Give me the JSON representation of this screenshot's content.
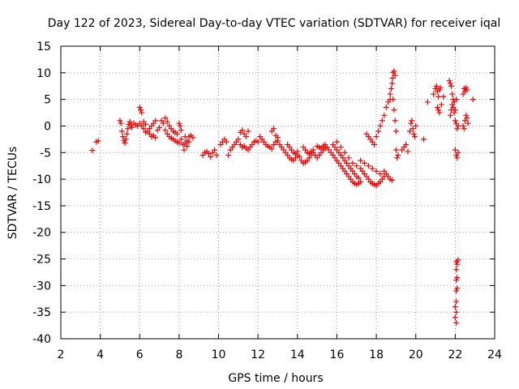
{
  "chart_data": {
    "type": "scatter",
    "title": "Day 122 of 2023, Sidereal Day-to-day VTEC variation (SDTVAR) for receiver iqal",
    "xlabel": "GPS time / hours",
    "ylabel": "SDTVAR / TECUs",
    "xlim": [
      2,
      24
    ],
    "ylim": [
      -40,
      15
    ],
    "xticks": [
      2,
      4,
      6,
      8,
      10,
      12,
      14,
      16,
      18,
      20,
      22,
      24
    ],
    "yticks": [
      15,
      10,
      5,
      0,
      -5,
      -10,
      -15,
      -20,
      -25,
      -30,
      -35,
      -40
    ],
    "grid": true,
    "marker": "plus",
    "color": "#ff0000",
    "series": [
      {
        "name": "SDTVAR",
        "points": [
          [
            3.6,
            -4.6
          ],
          [
            3.8,
            -3.0
          ],
          [
            3.9,
            -2.8
          ],
          [
            5.0,
            1.0
          ],
          [
            5.05,
            0.5
          ],
          [
            5.1,
            -1.0
          ],
          [
            5.15,
            -2.0
          ],
          [
            5.2,
            -2.8
          ],
          [
            5.25,
            -3.2
          ],
          [
            5.3,
            -2.5
          ],
          [
            5.35,
            -1.5
          ],
          [
            5.4,
            -0.5
          ],
          [
            5.45,
            0.3
          ],
          [
            5.5,
            0.8
          ],
          [
            5.55,
            0.2
          ],
          [
            5.6,
            -0.3
          ],
          [
            5.7,
            0.5
          ],
          [
            5.8,
            0.2
          ],
          [
            5.9,
            0.0
          ],
          [
            6.0,
            3.5
          ],
          [
            6.05,
            3.0
          ],
          [
            6.1,
            2.5
          ],
          [
            6.0,
            0.5
          ],
          [
            6.1,
            0.0
          ],
          [
            6.2,
            -0.5
          ],
          [
            6.3,
            -1.2
          ],
          [
            6.4,
            -1.0
          ],
          [
            6.2,
            0.8
          ],
          [
            6.3,
            0.3
          ],
          [
            6.5,
            -0.5
          ],
          [
            6.6,
            0.0
          ],
          [
            6.7,
            0.5
          ],
          [
            6.8,
            1.0
          ],
          [
            6.9,
            -0.8
          ],
          [
            7.0,
            -0.3
          ],
          [
            6.5,
            -1.5
          ],
          [
            6.6,
            -2.0
          ],
          [
            6.7,
            -1.8
          ],
          [
            6.8,
            -2.2
          ],
          [
            7.1,
            1.0
          ],
          [
            7.2,
            0.5
          ],
          [
            7.3,
            1.5
          ],
          [
            7.4,
            0.8
          ],
          [
            7.3,
            -0.8
          ],
          [
            7.4,
            -1.5
          ],
          [
            7.5,
            -2.0
          ],
          [
            7.6,
            -2.3
          ],
          [
            7.7,
            -2.5
          ],
          [
            7.8,
            -2.8
          ],
          [
            7.9,
            -3.0
          ],
          [
            8.0,
            -3.2
          ],
          [
            7.5,
            0.0
          ],
          [
            7.6,
            -0.5
          ],
          [
            7.7,
            -1.0
          ],
          [
            7.8,
            -1.2
          ],
          [
            7.9,
            -1.5
          ],
          [
            8.0,
            0.5
          ],
          [
            8.05,
            0.0
          ],
          [
            8.1,
            -0.8
          ],
          [
            8.1,
            -2.5
          ],
          [
            8.2,
            -3.5
          ],
          [
            8.25,
            -4.5
          ],
          [
            8.3,
            -3.2
          ],
          [
            8.4,
            -2.8
          ],
          [
            8.5,
            -2.0
          ],
          [
            8.6,
            -1.8
          ],
          [
            8.7,
            -2.2
          ],
          [
            8.3,
            -2.0
          ],
          [
            8.4,
            -3.8
          ],
          [
            8.5,
            -3.0
          ],
          [
            9.2,
            -5.5
          ],
          [
            9.3,
            -5.0
          ],
          [
            9.4,
            -4.8
          ],
          [
            9.5,
            -5.2
          ],
          [
            9.6,
            -5.8
          ],
          [
            9.7,
            -5.0
          ],
          [
            9.8,
            -4.5
          ],
          [
            9.9,
            -5.5
          ],
          [
            10.1,
            -3.5
          ],
          [
            10.2,
            -3.0
          ],
          [
            10.3,
            -2.5
          ],
          [
            10.4,
            -3.0
          ],
          [
            10.5,
            -5.5
          ],
          [
            10.6,
            -4.5
          ],
          [
            10.7,
            -4.0
          ],
          [
            10.8,
            -3.5
          ],
          [
            10.9,
            -3.0
          ],
          [
            11.0,
            -2.5
          ],
          [
            11.1,
            -3.5
          ],
          [
            11.2,
            -4.0
          ],
          [
            11.3,
            -3.8
          ],
          [
            11.4,
            -4.2
          ],
          [
            11.5,
            -1.0
          ],
          [
            11.5,
            -4.5
          ],
          [
            11.6,
            -4.0
          ],
          [
            11.7,
            -3.5
          ],
          [
            11.8,
            -3.0
          ],
          [
            11.9,
            -2.8
          ],
          [
            12.0,
            -3.0
          ],
          [
            11.3,
            -1.5
          ],
          [
            11.4,
            -2.0
          ],
          [
            11.2,
            -0.8
          ],
          [
            11.1,
            -1.2
          ],
          [
            12.1,
            -2.0
          ],
          [
            12.2,
            -2.5
          ],
          [
            12.3,
            -3.0
          ],
          [
            12.4,
            -3.5
          ],
          [
            12.5,
            -3.8
          ],
          [
            12.6,
            -4.0
          ],
          [
            12.7,
            -4.3
          ],
          [
            12.8,
            -3.5
          ],
          [
            12.9,
            -3.0
          ],
          [
            13.0,
            -2.8
          ],
          [
            13.1,
            -3.5
          ],
          [
            13.2,
            -4.0
          ],
          [
            13.3,
            -4.5
          ],
          [
            13.4,
            -5.0
          ],
          [
            12.8,
            -0.5
          ],
          [
            12.7,
            -1.0
          ],
          [
            12.9,
            -1.8
          ],
          [
            13.0,
            -2.2
          ],
          [
            13.5,
            -5.5
          ],
          [
            13.6,
            -6.0
          ],
          [
            13.7,
            -6.3
          ],
          [
            13.8,
            -6.5
          ],
          [
            13.9,
            -6.0
          ],
          [
            14.0,
            -5.5
          ],
          [
            14.1,
            -5.8
          ],
          [
            13.5,
            -3.5
          ],
          [
            13.6,
            -4.0
          ],
          [
            13.7,
            -4.5
          ],
          [
            13.8,
            -5.0
          ],
          [
            13.9,
            -5.2
          ],
          [
            14.0,
            -4.8
          ],
          [
            14.2,
            -6.5
          ],
          [
            14.3,
            -7.0
          ],
          [
            14.4,
            -6.8
          ],
          [
            14.5,
            -6.5
          ],
          [
            14.6,
            -6.0
          ],
          [
            14.7,
            -5.5
          ],
          [
            14.8,
            -5.0
          ],
          [
            14.3,
            -4.0
          ],
          [
            14.4,
            -4.5
          ],
          [
            14.5,
            -5.0
          ],
          [
            14.6,
            -5.2
          ],
          [
            14.7,
            -4.8
          ],
          [
            14.8,
            -4.5
          ],
          [
            14.9,
            -5.5
          ],
          [
            15.0,
            -6.0
          ],
          [
            15.1,
            -5.5
          ],
          [
            15.2,
            -5.0
          ],
          [
            15.3,
            -4.5
          ],
          [
            15.4,
            -4.2
          ],
          [
            15.5,
            -4.0
          ],
          [
            15.0,
            -3.8
          ],
          [
            15.1,
            -4.0
          ],
          [
            15.2,
            -4.2
          ],
          [
            15.3,
            -3.8
          ],
          [
            15.4,
            -3.5
          ],
          [
            15.6,
            -4.5
          ],
          [
            15.7,
            -5.0
          ],
          [
            15.8,
            -5.5
          ],
          [
            15.9,
            -6.0
          ],
          [
            16.0,
            -6.5
          ],
          [
            16.1,
            -7.0
          ],
          [
            16.2,
            -7.5
          ],
          [
            16.3,
            -8.0
          ],
          [
            16.4,
            -8.5
          ],
          [
            16.5,
            -9.0
          ],
          [
            16.6,
            -9.5
          ],
          [
            16.7,
            -10.0
          ],
          [
            16.8,
            -10.5
          ],
          [
            16.9,
            -10.8
          ],
          [
            17.0,
            -11.0
          ],
          [
            17.1,
            -10.8
          ],
          [
            17.2,
            -10.5
          ],
          [
            15.8,
            -3.5
          ],
          [
            15.9,
            -4.0
          ],
          [
            16.0,
            -4.5
          ],
          [
            16.1,
            -5.0
          ],
          [
            16.2,
            -5.5
          ],
          [
            16.3,
            -6.0
          ],
          [
            16.4,
            -6.5
          ],
          [
            16.5,
            -7.0
          ],
          [
            16.6,
            -7.5
          ],
          [
            16.7,
            -8.0
          ],
          [
            16.8,
            -8.5
          ],
          [
            16.9,
            -9.0
          ],
          [
            17.0,
            -9.5
          ],
          [
            17.1,
            -9.8
          ],
          [
            16.0,
            -3.0
          ],
          [
            16.2,
            -4.0
          ],
          [
            16.4,
            -5.0
          ],
          [
            16.6,
            -6.0
          ],
          [
            16.8,
            -7.0
          ],
          [
            17.0,
            -7.5
          ],
          [
            17.2,
            -8.0
          ],
          [
            17.3,
            -8.5
          ],
          [
            17.4,
            -9.0
          ],
          [
            17.5,
            -9.5
          ],
          [
            17.6,
            -10.0
          ],
          [
            17.7,
            -10.5
          ],
          [
            17.8,
            -10.8
          ],
          [
            17.9,
            -11.0
          ],
          [
            18.0,
            -11.2
          ],
          [
            18.1,
            -10.8
          ],
          [
            18.2,
            -10.5
          ],
          [
            18.3,
            -10.0
          ],
          [
            18.4,
            -9.5
          ],
          [
            18.5,
            -9.0
          ],
          [
            18.6,
            -9.5
          ],
          [
            18.7,
            -10.0
          ],
          [
            18.8,
            -10.2
          ],
          [
            17.2,
            -6.5
          ],
          [
            17.4,
            -7.0
          ],
          [
            17.6,
            -7.5
          ],
          [
            17.8,
            -8.0
          ],
          [
            18.0,
            -8.5
          ],
          [
            18.2,
            -9.0
          ],
          [
            18.4,
            -8.5
          ],
          [
            17.5,
            -1.5
          ],
          [
            17.6,
            -2.0
          ],
          [
            17.7,
            -2.5
          ],
          [
            17.8,
            -3.0
          ],
          [
            17.9,
            -3.5
          ],
          [
            18.0,
            -2.0
          ],
          [
            18.1,
            -1.0
          ],
          [
            18.2,
            0.0
          ],
          [
            18.3,
            1.0
          ],
          [
            18.4,
            2.0
          ],
          [
            18.5,
            3.5
          ],
          [
            18.6,
            4.5
          ],
          [
            18.7,
            5.0
          ],
          [
            18.7,
            6.0
          ],
          [
            18.75,
            7.0
          ],
          [
            18.8,
            8.0
          ],
          [
            18.82,
            9.0
          ],
          [
            18.85,
            10.0
          ],
          [
            18.9,
            10.3
          ],
          [
            18.95,
            9.5
          ],
          [
            18.85,
            5.0
          ],
          [
            18.9,
            3.0
          ],
          [
            18.95,
            1.0
          ],
          [
            19.0,
            -1.0
          ],
          [
            19.0,
            -4.5
          ],
          [
            19.05,
            -6.0
          ],
          [
            19.1,
            -5.5
          ],
          [
            19.3,
            -4.5
          ],
          [
            19.4,
            -4.0
          ],
          [
            19.5,
            -3.5
          ],
          [
            19.6,
            -4.8
          ],
          [
            19.7,
            -1.0
          ],
          [
            19.75,
            0.5
          ],
          [
            19.8,
            1.0
          ],
          [
            19.85,
            -0.5
          ],
          [
            19.9,
            -1.5
          ],
          [
            19.95,
            -2.0
          ],
          [
            20.0,
            0.0
          ],
          [
            20.4,
            -2.5
          ],
          [
            20.6,
            4.5
          ],
          [
            20.9,
            6.0
          ],
          [
            21.0,
            7.0
          ],
          [
            21.05,
            7.5
          ],
          [
            21.1,
            6.5
          ],
          [
            21.15,
            5.5
          ],
          [
            21.2,
            6.8
          ],
          [
            21.25,
            7.2
          ],
          [
            21.1,
            3.5
          ],
          [
            21.15,
            3.0
          ],
          [
            21.2,
            2.5
          ],
          [
            21.3,
            4.0
          ],
          [
            21.4,
            5.5
          ],
          [
            21.7,
            8.5
          ],
          [
            21.75,
            8.0
          ],
          [
            21.8,
            7.5
          ],
          [
            21.85,
            6.0
          ],
          [
            21.9,
            5.0
          ],
          [
            21.95,
            4.5
          ],
          [
            21.75,
            2.0
          ],
          [
            21.8,
            3.0
          ],
          [
            21.85,
            4.0
          ],
          [
            21.9,
            3.5
          ],
          [
            21.95,
            2.5
          ],
          [
            22.0,
            3.0
          ],
          [
            22.05,
            5.0
          ],
          [
            22.0,
            1.0
          ],
          [
            22.05,
            0.5
          ],
          [
            22.1,
            -0.5
          ],
          [
            22.15,
            0.0
          ],
          [
            22.0,
            -4.5
          ],
          [
            22.05,
            -5.5
          ],
          [
            22.1,
            -6.0
          ],
          [
            22.15,
            -5.0
          ],
          [
            22.05,
            -25.5
          ],
          [
            22.05,
            -27.0
          ],
          [
            22.05,
            -29.0
          ],
          [
            22.05,
            -31.0
          ],
          [
            22.05,
            -33.0
          ],
          [
            22.05,
            -35.0
          ],
          [
            22.05,
            -37.0
          ],
          [
            22.1,
            -26.0
          ],
          [
            22.1,
            -28.5
          ],
          [
            22.1,
            -30.5
          ],
          [
            22.15,
            -25.2
          ],
          [
            22.0,
            -36.0
          ],
          [
            22.0,
            -34.0
          ],
          [
            22.4,
            6.0
          ],
          [
            22.45,
            7.0
          ],
          [
            22.5,
            6.5
          ],
          [
            22.55,
            7.2
          ],
          [
            22.6,
            6.8
          ],
          [
            22.5,
            1.0
          ],
          [
            22.55,
            2.0
          ],
          [
            22.6,
            1.5
          ],
          [
            22.65,
            0.5
          ],
          [
            22.4,
            0.0
          ],
          [
            22.45,
            -0.5
          ],
          [
            22.9,
            5.0
          ]
        ]
      }
    ]
  }
}
